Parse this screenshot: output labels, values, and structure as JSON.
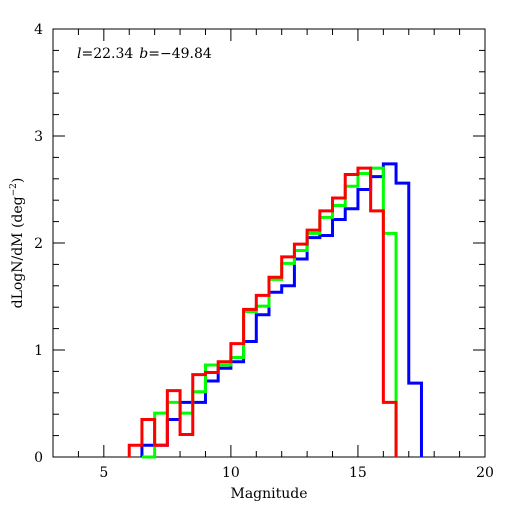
{
  "chart_data": {
    "type": "step",
    "xlabel": "Magnitude",
    "ylabel": "dLogN/dM (deg",
    "ylabel_sup": "−2",
    "ylabel_close": ")",
    "annotation": {
      "l_label": "l",
      "l_value": "=22.34",
      "b_label": "b",
      "b_value": "=−49.84"
    },
    "xlim": [
      3,
      20
    ],
    "ylim": [
      0,
      4
    ],
    "xticks_major": [
      5,
      10,
      15,
      20
    ],
    "xticks_major_labels": [
      "5",
      "10",
      "15",
      "20"
    ],
    "yticks_major": [
      0,
      1,
      2,
      3,
      4
    ],
    "yticks_major_labels": [
      "0",
      "1",
      "2",
      "3",
      "4"
    ],
    "xticks_minor_step": 1,
    "yticks_minor_step": 0.2,
    "bin_width": 0.5,
    "series": [
      {
        "color": "#0000ff",
        "bin_edges_start": 6.5,
        "values": [
          0.11,
          0.11,
          0.35,
          0.51,
          0.51,
          0.71,
          0.83,
          0.89,
          1.08,
          1.33,
          1.54,
          1.6,
          1.85,
          2.05,
          2.07,
          2.22,
          2.32,
          2.5,
          2.62,
          2.74,
          2.56,
          0.69
        ]
      },
      {
        "color": "#00ff00",
        "bin_edges_start": 6.5,
        "values": [
          0.0,
          0.41,
          0.51,
          0.41,
          0.61,
          0.86,
          0.86,
          0.93,
          1.36,
          1.41,
          1.66,
          1.81,
          1.93,
          2.09,
          2.24,
          2.35,
          2.53,
          2.65,
          2.7,
          2.09
        ]
      },
      {
        "color": "#ff0000",
        "bin_edges_start": 6.0,
        "values": [
          0.11,
          0.35,
          0.11,
          0.62,
          0.21,
          0.77,
          0.79,
          0.89,
          1.06,
          1.38,
          1.51,
          1.68,
          1.87,
          1.99,
          2.12,
          2.3,
          2.42,
          2.64,
          2.7,
          2.3,
          0.51
        ]
      }
    ],
    "colors": {
      "frame": "#000000",
      "background": "#ffffff"
    }
  }
}
